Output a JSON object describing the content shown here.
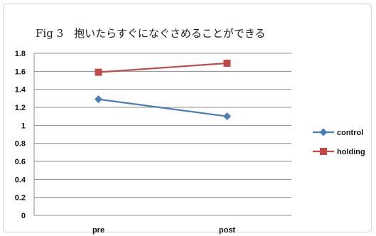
{
  "chart_data": {
    "type": "line",
    "title": "Fig 3　抱いたらすぐになぐさめることができる",
    "categories": [
      "pre",
      "post"
    ],
    "ylim": [
      0,
      1.8
    ],
    "yticks": [
      "0",
      "0.2",
      "0.4",
      "0.6",
      "0.8",
      "1",
      "1.2",
      "1.4",
      "1.6",
      "1.8"
    ],
    "grid": true,
    "legend_position": "right",
    "series": [
      {
        "name": "control",
        "values": [
          1.29,
          1.1
        ],
        "color": "#4a7ebb",
        "marker": "diamond"
      },
      {
        "name": "holding",
        "values": [
          1.59,
          1.69
        ],
        "color": "#be4b48",
        "marker": "square"
      }
    ]
  }
}
